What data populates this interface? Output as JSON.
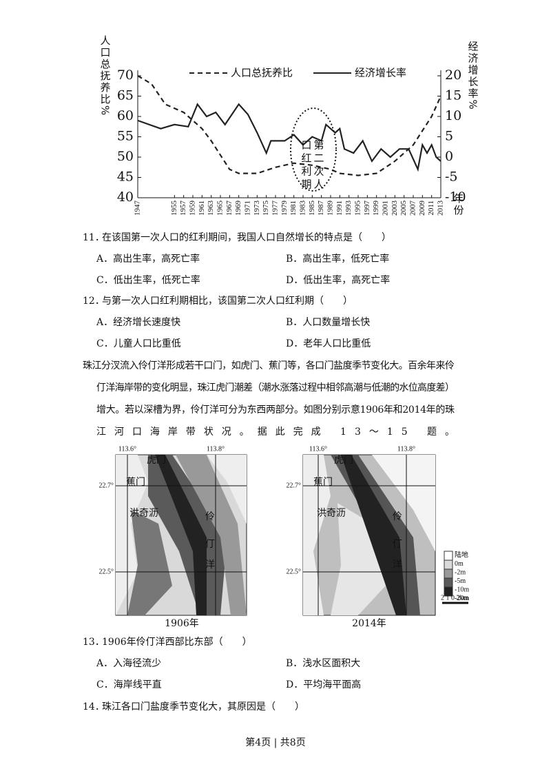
{
  "chart_data": {
    "type": "line",
    "xlabel": "年份",
    "ylabel": "人口总抚养比%",
    "y2label": "经济增长率%",
    "annotation": "第二次人口红利期",
    "xlim": [
      1947,
      2013
    ],
    "xticks": [
      1947,
      1955,
      1957,
      1959,
      1961,
      1963,
      1965,
      1967,
      1969,
      1971,
      1973,
      1975,
      1977,
      1979,
      1981,
      1983,
      1985,
      1987,
      1989,
      1991,
      1993,
      1995,
      1997,
      1999,
      2001,
      2003,
      2005,
      2007,
      2009,
      2011,
      2013
    ],
    "ylim": [
      40,
      70
    ],
    "yticks": [
      40,
      45,
      50,
      55,
      60,
      65,
      70
    ],
    "y2lim": [
      -10,
      20
    ],
    "y2ticks": [
      -10,
      -5,
      0,
      5,
      10,
      15,
      20
    ],
    "series": [
      {
        "name": "人口总抚养比",
        "color": "#222222",
        "line_style": "dashed",
        "x": [
          1947,
          1950,
          1953,
          1957,
          1961,
          1963,
          1967,
          1969,
          1973,
          1977,
          1981,
          1985,
          1989,
          1991,
          1995,
          1999,
          2003,
          2007,
          2011,
          2013
        ],
        "values": [
          70,
          68,
          63,
          61,
          57,
          54,
          47,
          46,
          46,
          47.5,
          48.5,
          48,
          47,
          46,
          45.5,
          46,
          49,
          53,
          60,
          65
        ]
      },
      {
        "name": "经济增长率",
        "color": "#222222",
        "line_style": "solid",
        "axis": "y2",
        "x": [
          1947,
          1952,
          1955,
          1958,
          1960,
          1962,
          1964,
          1966,
          1969,
          1971,
          1973,
          1975,
          1976,
          1979,
          1981,
          1983,
          1985,
          1987,
          1988,
          1990,
          1991,
          1992,
          1994,
          1996,
          1998,
          2000,
          2002,
          2004,
          2006,
          2008,
          2009,
          2010,
          2011,
          2012,
          2013
        ],
        "values": [
          9,
          7,
          8,
          7.5,
          13,
          10,
          11,
          8,
          13,
          10.5,
          6,
          1,
          4,
          4,
          5.5,
          3,
          5,
          4,
          8,
          6,
          7,
          2,
          1,
          4,
          -1,
          2,
          0,
          2,
          2,
          -3,
          3,
          1,
          3,
          0,
          -1
        ]
      }
    ]
  },
  "questions_a": [
    {
      "number": "11．",
      "text": "在该国第一次人口的红利期间，我国人口自然增长的特点是（　　）",
      "options": [
        "A．高出生率，高死亡率",
        "B．高出生率，低死亡率",
        "C．低出生率，低死亡率",
        "D．低出生率，高死亡率"
      ]
    },
    {
      "number": "12．",
      "text": "与第一次人口红利期相比，该国第二次人口红利期（　　）",
      "options": [
        "A．经济增长速度快",
        "B．人口数量增长快",
        "C．儿童人口比重低",
        "D．老年人口比重低"
      ]
    }
  ],
  "passage": [
    "珠江分汊流入伶仃洋形成若干口门，如虎门、蕉门等，各口门盐度季节变化大。百余年来伶",
    "仃洋海岸带的变化明显，珠江虎门潮差（潮水涨落过程中相邻高潮与低潮的水位高度差）",
    "增大。若以深槽为界，伶仃洋可分为东西两部分。如图分别示意1906年和2014年的珠",
    "江河口海岸带状况。据此完成 13～15 题。"
  ],
  "maps": [
    {
      "caption": "1906年",
      "lon_labels": [
        "113.6°",
        "113.8°"
      ],
      "lat_labels": [
        "22.7°",
        "22.5°"
      ],
      "places": [
        "虎门",
        "蕉门",
        "洪奇沥",
        "伶",
        "仃",
        "洋"
      ]
    },
    {
      "caption": "2014年",
      "lon_labels": [
        "113.6°",
        "113.8°"
      ],
      "lat_labels": [
        "22.7°",
        "22.5°"
      ],
      "places": [
        "虎门",
        "蕉门",
        "洪奇沥",
        "伶",
        "仃",
        "洋"
      ]
    }
  ],
  "map_legend": [
    "陆地",
    "0m",
    "-2m",
    "-5m",
    "-10m",
    "-20m"
  ],
  "map_scale": "2 1 0 2km",
  "questions_b": [
    {
      "number": "13．",
      "text": "1906年伶仃洋西部比东部（　　）",
      "options": [
        "A．入海径流少",
        "B．浅水区面积大",
        "C．海岸线平直",
        "D．平均海平面高"
      ]
    },
    {
      "number": "14．",
      "text": "珠江各口门盐度季节变化大，其原因是（　　）",
      "options": []
    }
  ],
  "footer": "第4页 | 共8页"
}
